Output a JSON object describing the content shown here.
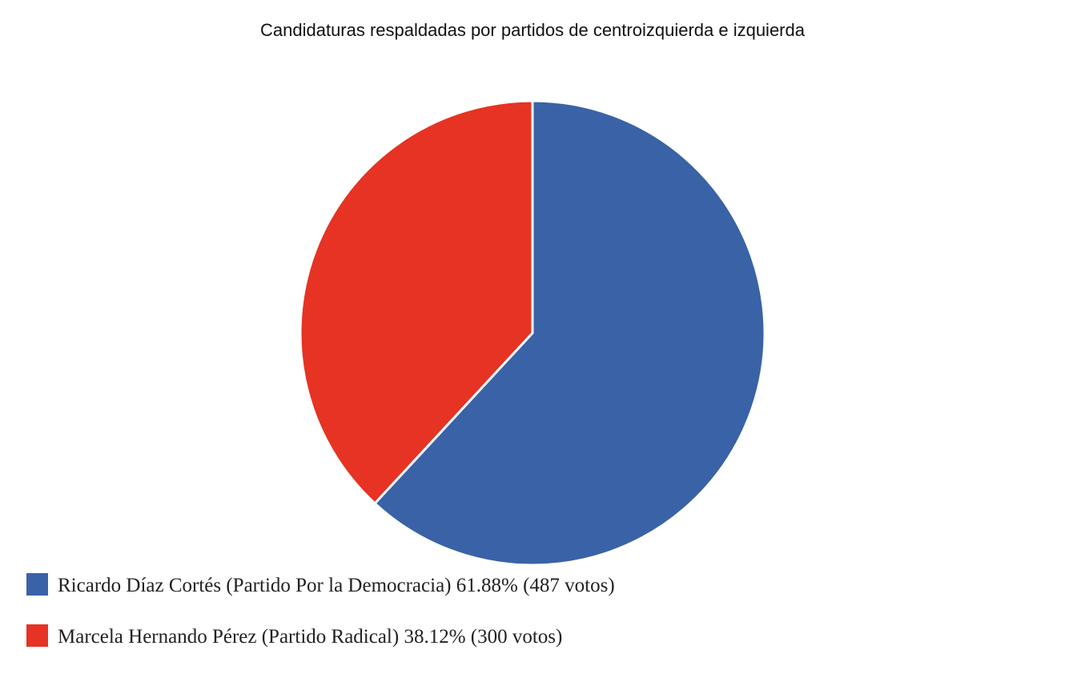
{
  "chart_data": {
    "type": "pie",
    "title": "Candidaturas respaldadas por partidos de centroizquierda e izquierda",
    "categories": [
      "Ricardo Díaz Cortés (Partido Por la Democracia)",
      "Marcela Hernando Pérez (Partido Radical)"
    ],
    "values": [
      61.88,
      38.12
    ],
    "value_labels": [
      "61.88%",
      "38.12%"
    ],
    "counts": [
      487,
      300
    ],
    "count_labels": [
      "(487 votos)",
      "(300 votos)"
    ],
    "colors": [
      "#3a62a7",
      "#e63323"
    ],
    "legend": "bottom-left"
  }
}
